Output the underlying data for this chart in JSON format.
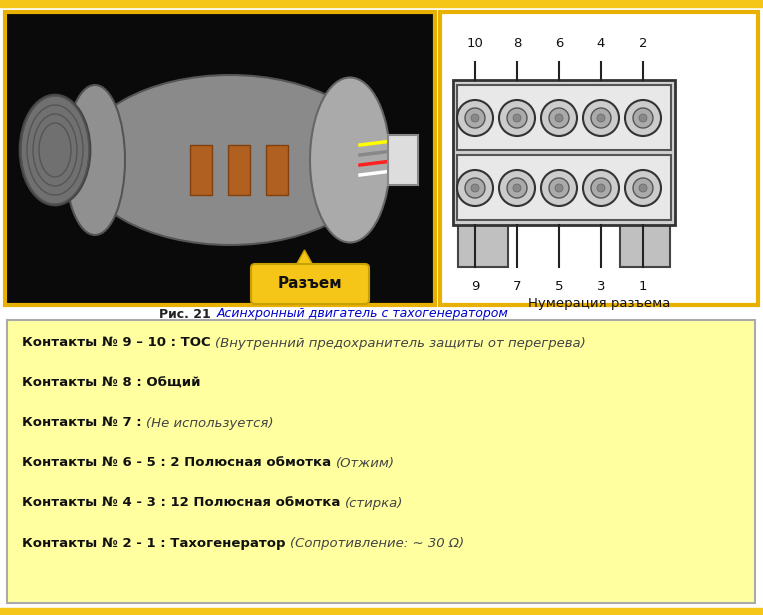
{
  "fig_width": 7.63,
  "fig_height": 6.15,
  "dpi": 100,
  "bg_color": "#ffffff",
  "yellow": "#f5c518",
  "yellow_border": "#e8b000",
  "caption_bold": "Рис. 21 ",
  "caption_italic": "Асинхронный двигатель с тахогенератором",
  "caption_color": "#222222",
  "caption_italic_color": "#0000cc",
  "info_box_bg": "#ffffa0",
  "info_box_border": "#aaaaaa",
  "connector_label": "Разъем",
  "numbering_label": "Нумерация разъема",
  "top_numbers": [
    "10",
    "8",
    "6",
    "4",
    "2"
  ],
  "bottom_numbers": [
    "9",
    "7",
    "5",
    "3",
    "1"
  ],
  "lines": [
    {
      "bold": "Контакты № 9 – 10 : ТОС ",
      "italic": "(Внутренний предохранитель защиты от перегрева)"
    },
    {
      "bold": "Контакты № 8 : Общий",
      "italic": ""
    },
    {
      "bold": "Контакты № 7 : ",
      "italic": "(Не используется)"
    },
    {
      "bold": "Контакты № 6 - 5 : 2 Полюсная обмотка ",
      "italic": "(Отжим)"
    },
    {
      "bold": "Контакты № 4 - 3 : 12 Полюсная обмотка ",
      "italic": "(стирка)"
    },
    {
      "bold": "Контакты № 2 - 1 : Тахогенератор ",
      "italic": "(Сопротивление: ∼ 30 Ω)"
    }
  ]
}
